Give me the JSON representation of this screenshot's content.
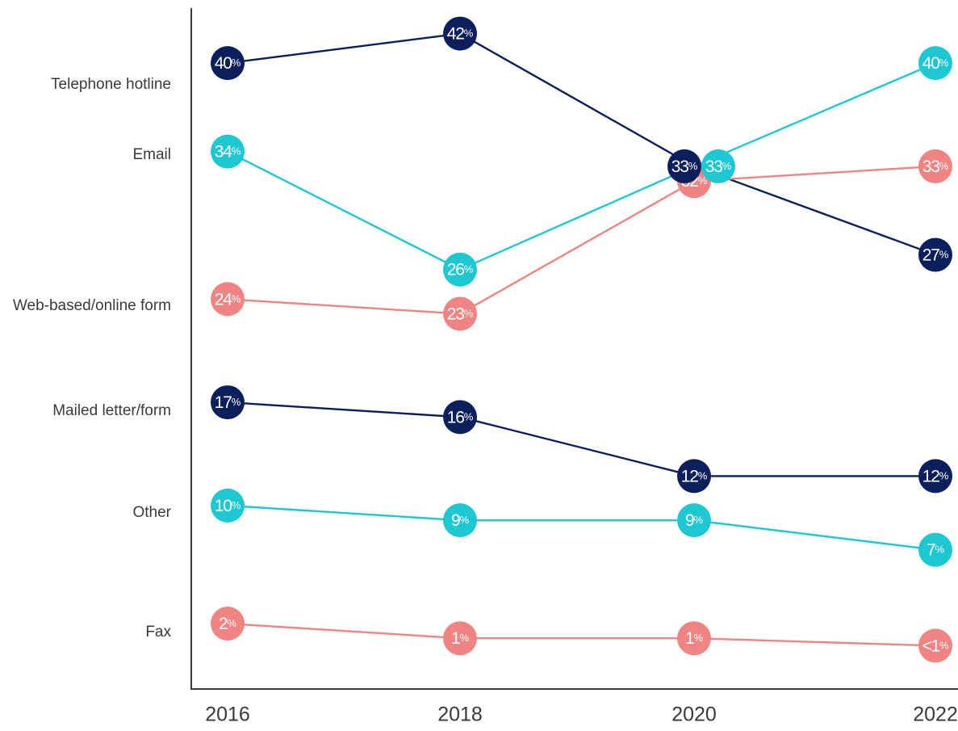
{
  "chart_data": {
    "type": "line",
    "x": [
      "2016",
      "2018",
      "2020",
      "2022"
    ],
    "series": [
      {
        "name": "Telephone hotline",
        "color": "#0b1f5c",
        "values": [
          40,
          42,
          33,
          27
        ],
        "labels": [
          "40%",
          "42%",
          "33%",
          "27%"
        ]
      },
      {
        "name": "Email",
        "color": "#1ec8d2",
        "values": [
          34,
          26,
          33,
          40
        ],
        "labels": [
          "34%",
          "26%",
          "33%",
          "40%"
        ]
      },
      {
        "name": "Web-based/online form",
        "color": "#f08482",
        "values": [
          24,
          23,
          32,
          33
        ],
        "labels": [
          "24%",
          "23%",
          "32%",
          "33%"
        ]
      },
      {
        "name": "Mailed letter/form",
        "color": "#0b1f5c",
        "values": [
          17,
          16,
          12,
          12
        ],
        "labels": [
          "17%",
          "16%",
          "12%",
          "12%"
        ]
      },
      {
        "name": "Other",
        "color": "#1ec8d2",
        "values": [
          10,
          9,
          9,
          7
        ],
        "labels": [
          "10%",
          "9%",
          "9%",
          "7%"
        ]
      },
      {
        "name": "Fax",
        "color": "#f08482",
        "values": [
          2,
          1,
          1,
          0.5
        ],
        "labels": [
          "2%",
          "1%",
          "1%",
          "<1%"
        ]
      }
    ],
    "ylim": [
      0,
      44
    ],
    "grid": false,
    "title": "",
    "xlabel": "",
    "ylabel": ""
  }
}
